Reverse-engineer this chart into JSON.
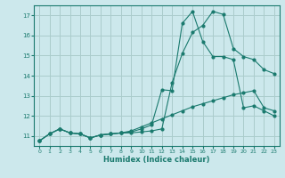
{
  "title": "",
  "xlabel": "Humidex (Indice chaleur)",
  "ylabel": "",
  "bg_color": "#cce8ec",
  "grid_color": "#aacccc",
  "line_color": "#1a7a6e",
  "xlim": [
    -0.5,
    23.5
  ],
  "ylim": [
    10.5,
    17.5
  ],
  "yticks": [
    11,
    12,
    13,
    14,
    15,
    16,
    17
  ],
  "xticks": [
    0,
    1,
    2,
    3,
    4,
    5,
    6,
    7,
    8,
    9,
    10,
    11,
    12,
    13,
    14,
    15,
    16,
    17,
    18,
    19,
    20,
    21,
    22,
    23
  ],
  "line1_x": [
    0,
    1,
    2,
    3,
    4,
    5,
    6,
    7,
    8,
    9,
    10,
    11,
    12,
    13,
    14,
    15,
    16,
    17,
    18,
    19,
    20,
    21,
    22,
    23
  ],
  "line1_y": [
    10.75,
    11.1,
    11.35,
    11.15,
    11.1,
    10.9,
    11.05,
    11.1,
    11.15,
    11.15,
    11.2,
    11.25,
    11.35,
    13.65,
    15.1,
    16.15,
    16.5,
    17.2,
    17.05,
    15.35,
    14.95,
    14.8,
    14.3,
    14.1
  ],
  "line2_x": [
    0,
    1,
    2,
    3,
    4,
    5,
    6,
    7,
    8,
    9,
    10,
    11,
    12,
    13,
    14,
    15,
    16,
    17,
    18,
    19,
    20,
    21,
    22,
    23
  ],
  "line2_y": [
    10.75,
    11.1,
    11.35,
    11.15,
    11.1,
    10.9,
    11.05,
    11.1,
    11.15,
    11.2,
    11.35,
    11.55,
    13.3,
    13.25,
    16.6,
    17.2,
    15.7,
    14.95,
    14.95,
    14.8,
    12.4,
    12.5,
    12.25,
    12.0
  ],
  "line3_x": [
    0,
    1,
    2,
    3,
    4,
    5,
    6,
    7,
    8,
    9,
    10,
    11,
    12,
    13,
    14,
    15,
    16,
    17,
    18,
    19,
    20,
    21,
    22,
    23
  ],
  "line3_y": [
    10.75,
    11.1,
    11.35,
    11.15,
    11.1,
    10.9,
    11.05,
    11.1,
    11.15,
    11.25,
    11.45,
    11.65,
    11.85,
    12.05,
    12.25,
    12.45,
    12.6,
    12.75,
    12.9,
    13.05,
    13.15,
    13.25,
    12.4,
    12.25
  ]
}
